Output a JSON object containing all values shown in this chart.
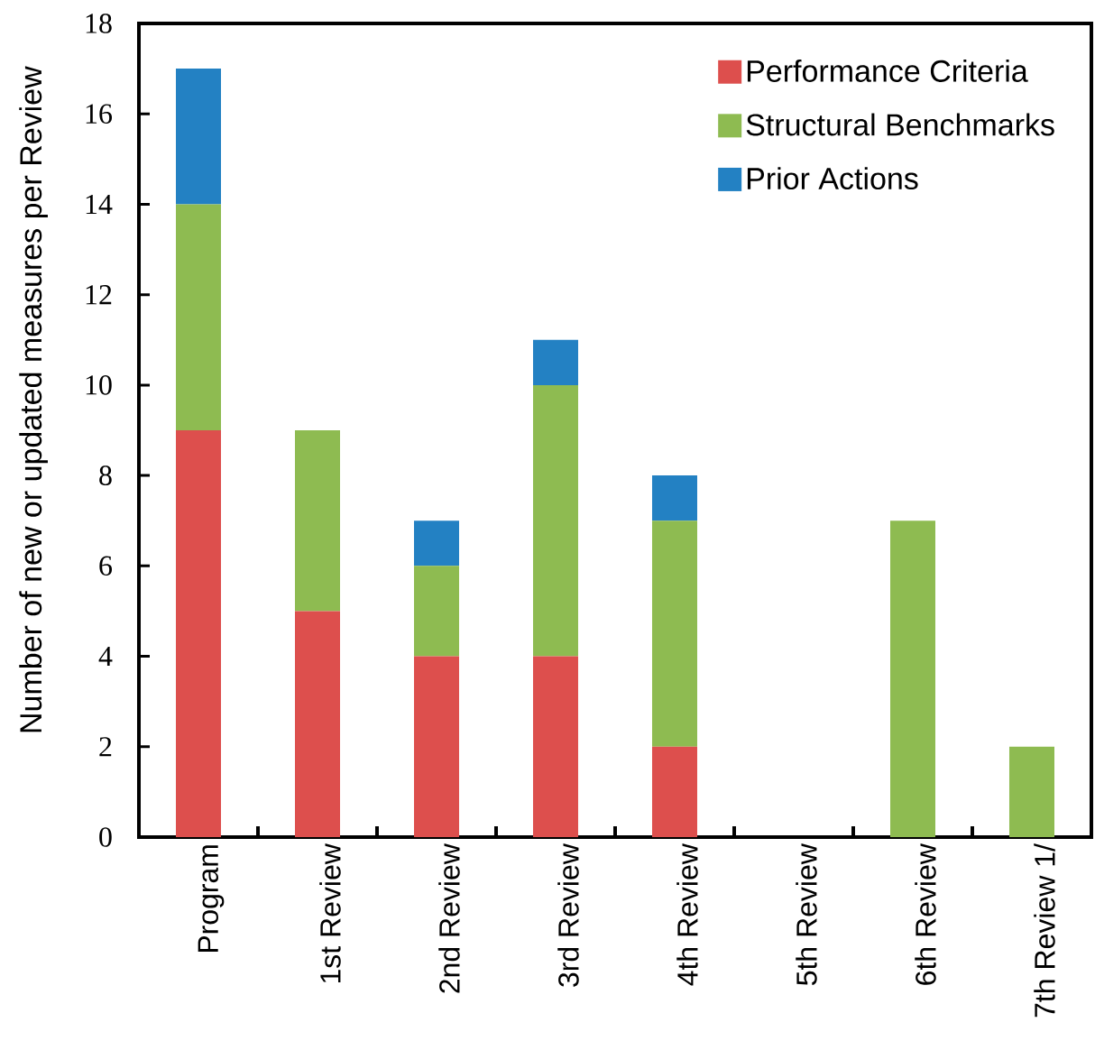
{
  "chart_data": {
    "type": "bar",
    "stacked": true,
    "ylabel": "Number of new or updated measures per Review",
    "categories": [
      "Program",
      "1st Review",
      "2nd Review",
      "3rd Review",
      "4th Review",
      "5th Review",
      "6th Review",
      "7th Review 1/"
    ],
    "series": [
      {
        "name": "Performance Criteria",
        "color": "#dd4f4d",
        "values": [
          9,
          5,
          4,
          4,
          2,
          0,
          0,
          0
        ]
      },
      {
        "name": "Structural Benchmarks",
        "color": "#8ebb51",
        "values": [
          5,
          4,
          2,
          6,
          5,
          0,
          7,
          2
        ]
      },
      {
        "name": "Prior Actions",
        "color": "#2381c3",
        "values": [
          3,
          0,
          1,
          1,
          1,
          0,
          0,
          0
        ]
      }
    ],
    "ylim": [
      0,
      18
    ],
    "yticks": [
      0,
      2,
      4,
      6,
      8,
      10,
      12,
      14,
      16,
      18
    ],
    "legend": "top right"
  }
}
